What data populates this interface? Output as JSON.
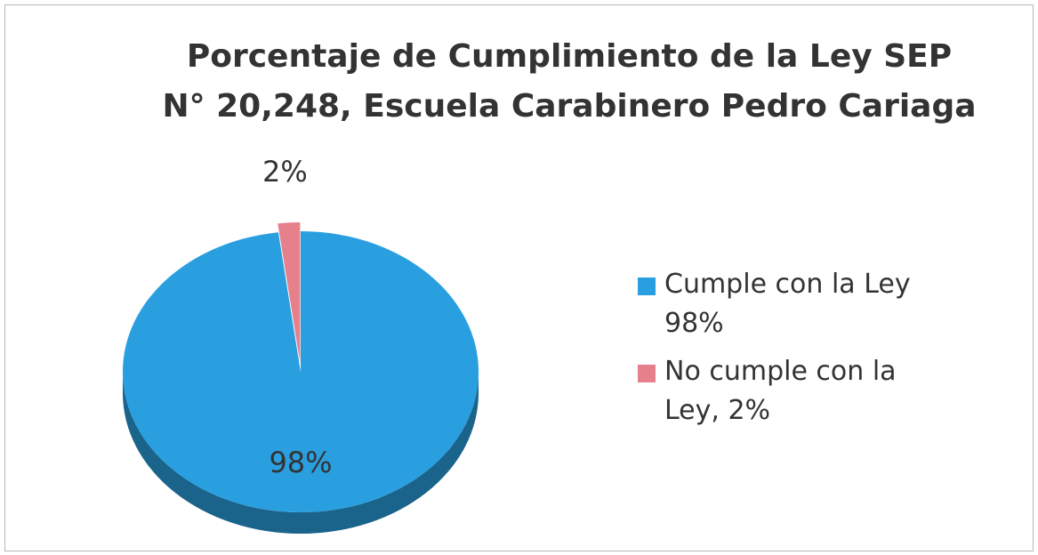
{
  "chart_data": {
    "type": "pie",
    "title": "Porcentaje de Cumplimiento de la Ley SEP N° 20,248, Escuela Carabinero Pedro Cariaga",
    "categories": [
      "Cumple con la Ley 98%",
      "No cumple con la Ley, 2%"
    ],
    "values": [
      98,
      2
    ],
    "value_labels": [
      "98%",
      "2%"
    ],
    "colors": [
      "#2a9fe0",
      "#e6808b"
    ],
    "legend": "right"
  }
}
